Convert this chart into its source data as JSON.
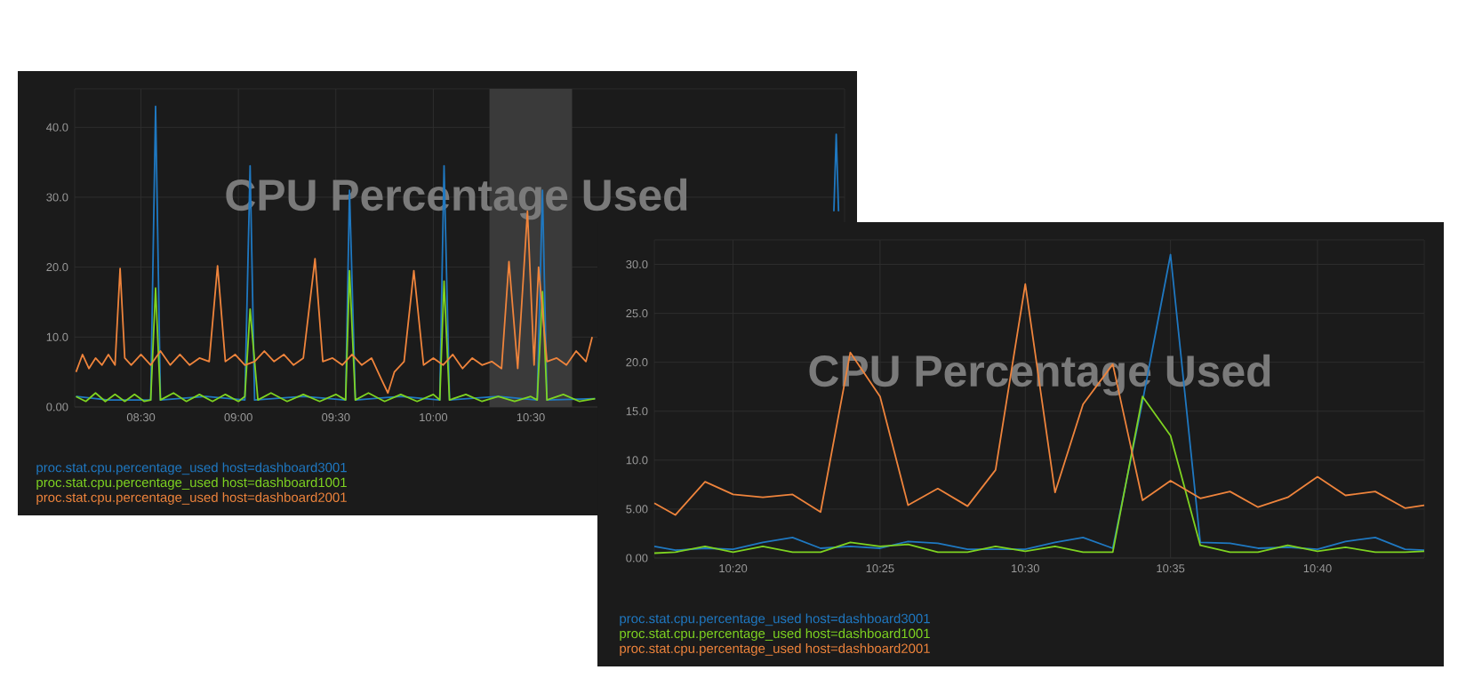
{
  "chart_data": [
    {
      "type": "line",
      "title": "CPU Percentage Used",
      "xlim": [
        8.16,
        12.11
      ],
      "ylim": [
        0,
        45.5
      ],
      "grid": true,
      "legend": "bottom",
      "xticks": [
        {
          "value": 8.5,
          "label": "08:30"
        },
        {
          "value": 9,
          "label": "09:00"
        },
        {
          "value": 9.5,
          "label": "09:30"
        },
        {
          "value": 10,
          "label": "10:00"
        },
        {
          "value": 10.5,
          "label": "10:30"
        }
      ],
      "yticks": [
        {
          "value": 0,
          "label": "0.00"
        },
        {
          "value": 10,
          "label": "10.0"
        },
        {
          "value": 20,
          "label": "20.0"
        },
        {
          "value": 30,
          "label": "30.0"
        },
        {
          "value": 40,
          "label": "40.0"
        }
      ],
      "bands": [
        {
          "axis": "x",
          "from": 10.288,
          "to": 10.712,
          "color": "#3a3a3a"
        }
      ],
      "series": [
        {
          "name": "proc.stat.cpu.percentage_used host=dashboard3001",
          "color": "#1f78c1",
          "x": [
            8.167,
            8.333,
            8.55,
            8.575,
            8.6,
            8.833,
            9.033,
            9.06,
            9.083,
            9.333,
            9.55,
            9.57,
            9.6,
            9.833,
            10.033,
            10.055,
            10.083,
            10.333,
            10.533,
            10.56,
            10.583,
            10.83,
            11.3,
            12.055,
            12.067,
            12.079
          ],
          "values": [
            1.5,
            1,
            1,
            43,
            1,
            1.5,
            1,
            34.5,
            1,
            1.5,
            1,
            31,
            1,
            1.5,
            1,
            34.5,
            1,
            1.5,
            1,
            31,
            1,
            1.2,
            null,
            28,
            39,
            28
          ]
        },
        {
          "name": "proc.stat.cpu.percentage_used host=dashboard1001",
          "color": "#7ed321",
          "x": [
            8.167,
            8.217,
            8.267,
            8.317,
            8.367,
            8.417,
            8.467,
            8.517,
            8.55,
            8.575,
            8.6,
            8.667,
            8.733,
            8.8,
            8.867,
            8.933,
            9,
            9.033,
            9.06,
            9.1,
            9.167,
            9.25,
            9.333,
            9.417,
            9.5,
            9.55,
            9.57,
            9.6,
            9.667,
            9.75,
            9.833,
            9.917,
            10,
            10.033,
            10.055,
            10.083,
            10.167,
            10.25,
            10.333,
            10.417,
            10.5,
            10.533,
            10.56,
            10.583,
            10.667,
            10.75,
            10.83
          ],
          "values": [
            1.5,
            0.8,
            2,
            0.8,
            1.8,
            0.8,
            1.8,
            0.8,
            1,
            17,
            1,
            2,
            0.8,
            1.8,
            0.8,
            1.8,
            0.8,
            1.5,
            14,
            1,
            2,
            0.8,
            1.8,
            0.8,
            1.8,
            1,
            19.5,
            1,
            2,
            0.8,
            1.8,
            0.8,
            1.8,
            1,
            18,
            1,
            1.8,
            0.8,
            1.5,
            0.8,
            1.5,
            1,
            16.5,
            1,
            1.8,
            0.8,
            1.2
          ]
        },
        {
          "name": "proc.stat.cpu.percentage_used host=dashboard2001",
          "color": "#ef843c",
          "x": [
            8.167,
            8.2,
            8.233,
            8.267,
            8.3,
            8.333,
            8.367,
            8.393,
            8.417,
            8.45,
            8.5,
            8.55,
            8.6,
            8.65,
            8.7,
            8.75,
            8.8,
            8.85,
            8.893,
            8.933,
            8.983,
            9.033,
            9.083,
            9.133,
            9.183,
            9.233,
            9.283,
            9.333,
            9.393,
            9.433,
            9.483,
            9.533,
            9.583,
            9.633,
            9.683,
            9.733,
            9.767,
            9.8,
            9.85,
            9.9,
            9.95,
            10,
            10.05,
            10.1,
            10.15,
            10.2,
            10.25,
            10.3,
            10.35,
            10.388,
            10.433,
            10.483,
            10.517,
            10.54,
            10.583,
            10.633,
            10.683,
            10.733,
            10.783,
            10.815
          ],
          "values": [
            5,
            7.5,
            5.5,
            7,
            6,
            7.5,
            6,
            19.8,
            7,
            6,
            7.5,
            6,
            8,
            6,
            7.5,
            6,
            7,
            6.5,
            20.2,
            6.5,
            7.5,
            6,
            6.5,
            8,
            6.5,
            7.5,
            6,
            7,
            21.2,
            6.5,
            7,
            6,
            7.5,
            6,
            7,
            4,
            2,
            5,
            6.5,
            19.5,
            6,
            7,
            6,
            7.5,
            5.5,
            7,
            6,
            6.5,
            5.5,
            20.8,
            5.5,
            28,
            6,
            20,
            6.5,
            7,
            6,
            8,
            6.5,
            10
          ]
        }
      ]
    },
    {
      "type": "line",
      "title": "CPU Percentage Used",
      "xlim": [
        10.288,
        10.728
      ],
      "ylim": [
        0,
        32.5
      ],
      "grid": true,
      "legend": "bottom",
      "xticks": [
        {
          "value": 10.333,
          "label": "10:20"
        },
        {
          "value": 10.417,
          "label": "10:25"
        },
        {
          "value": 10.5,
          "label": "10:30"
        },
        {
          "value": 10.583,
          "label": "10:35"
        },
        {
          "value": 10.667,
          "label": "10:40"
        }
      ],
      "yticks": [
        {
          "value": 0,
          "label": "0.00"
        },
        {
          "value": 5,
          "label": "5.00"
        },
        {
          "value": 10,
          "label": "10.0"
        },
        {
          "value": 15,
          "label": "15.0"
        },
        {
          "value": 20,
          "label": "20.0"
        },
        {
          "value": 25,
          "label": "25.0"
        },
        {
          "value": 30,
          "label": "30.0"
        }
      ],
      "x": [
        10.288,
        10.3,
        10.317,
        10.333,
        10.35,
        10.367,
        10.383,
        10.4,
        10.417,
        10.433,
        10.45,
        10.467,
        10.483,
        10.5,
        10.517,
        10.533,
        10.55,
        10.567,
        10.583,
        10.6,
        10.617,
        10.633,
        10.65,
        10.667,
        10.683,
        10.7,
        10.717,
        10.728
      ],
      "series": [
        {
          "name": "proc.stat.cpu.percentage_used host=dashboard3001",
          "color": "#1f78c1",
          "values": [
            1.2,
            0.8,
            1.0,
            0.9,
            1.6,
            2.1,
            1.0,
            1.2,
            1.0,
            1.7,
            1.5,
            0.9,
            0.9,
            0.9,
            1.6,
            2.1,
            1.0,
            16,
            31,
            1.6,
            1.5,
            1.0,
            1.1,
            0.9,
            1.7,
            2.1,
            0.9,
            0.8
          ]
        },
        {
          "name": "proc.stat.cpu.percentage_used host=dashboard1001",
          "color": "#7ed321",
          "values": [
            0.5,
            0.6,
            1.2,
            0.6,
            1.2,
            0.6,
            0.6,
            1.6,
            1.2,
            1.4,
            0.6,
            0.6,
            1.2,
            0.7,
            1.2,
            0.6,
            0.6,
            16.5,
            12.5,
            1.3,
            0.6,
            0.6,
            1.3,
            0.7,
            1.1,
            0.6,
            0.6,
            0.7
          ]
        },
        {
          "name": "proc.stat.cpu.percentage_used host=dashboard2001",
          "color": "#ef843c",
          "values": [
            5.6,
            4.4,
            7.8,
            6.5,
            6.2,
            6.5,
            4.7,
            21,
            16.5,
            5.4,
            7.1,
            5.3,
            9,
            28,
            6.7,
            15.7,
            19.8,
            5.9,
            7.9,
            6.1,
            6.8,
            5.2,
            6.2,
            8.3,
            6.4,
            6.8,
            5.1,
            5.4
          ]
        }
      ]
    }
  ]
}
